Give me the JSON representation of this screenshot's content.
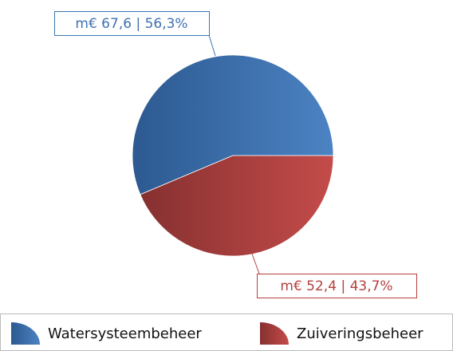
{
  "chart_data": {
    "type": "pie",
    "categories": [
      "Watersysteembeheer",
      "Zuiveringsbeheer"
    ],
    "values": [
      67.6,
      52.4
    ],
    "value_labels": [
      "m€ 67,6 | 56,3%",
      "m€ 52,4 | 43,7%"
    ],
    "colors": [
      "#3f72b0",
      "#b44040"
    ]
  }
}
